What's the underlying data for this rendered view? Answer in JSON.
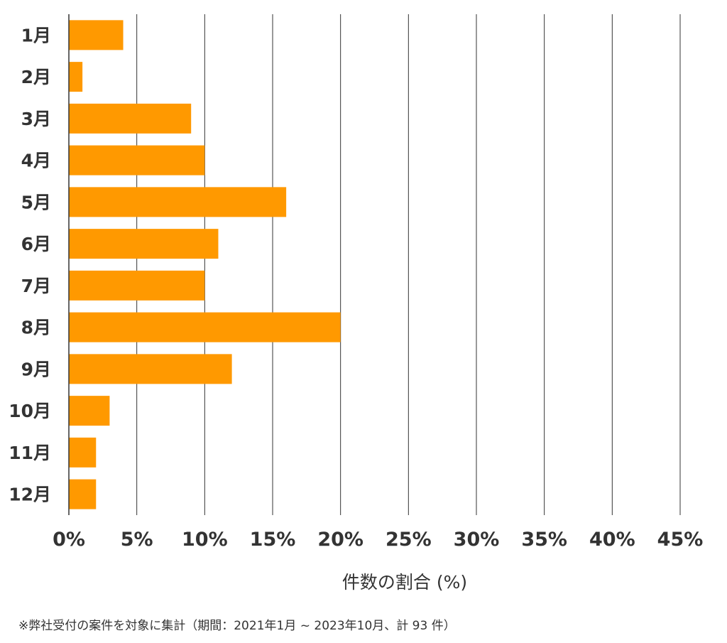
{
  "chart_data": {
    "type": "bar",
    "orientation": "horizontal",
    "categories": [
      "1月",
      "2月",
      "3月",
      "4月",
      "5月",
      "6月",
      "7月",
      "8月",
      "9月",
      "10月",
      "11月",
      "12月"
    ],
    "values": [
      4.0,
      1.0,
      9.0,
      10.0,
      16.0,
      11.0,
      10.0,
      20.0,
      12.0,
      3.0,
      2.0,
      2.0
    ],
    "x_ticks": [
      "0%",
      "5%",
      "10%",
      "15%",
      "20%",
      "25%",
      "30%",
      "35%",
      "40%",
      "45%"
    ],
    "xlim": [
      0,
      45
    ],
    "xlabel": "件数の割合 (%)",
    "grid": "vertical",
    "bar_color": "#ff9900",
    "grid_color": "#333333"
  },
  "footnote": "※弊社受付の案件を対象に集計（期間：2021年1月 ~ 2023年10月、計 93 件）"
}
